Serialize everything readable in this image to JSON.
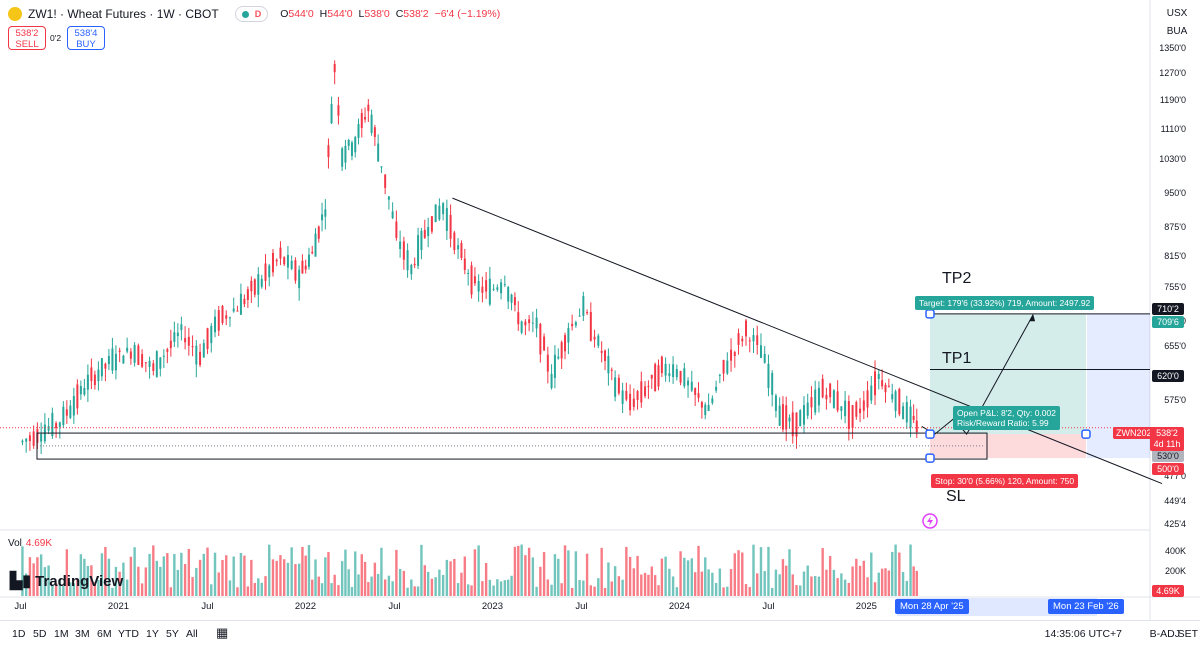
{
  "header": {
    "title": "ZW1! · Wheat Futures · 1W · CBOT",
    "pill_d": "D",
    "ohlc": [
      {
        "lab": "O",
        "val": "544'0"
      },
      {
        "lab": "H",
        "val": "544'0"
      },
      {
        "lab": "L",
        "val": "538'0"
      },
      {
        "lab": "C",
        "val": "538'2"
      },
      {
        "lab": "",
        "val": "−6'4 (−1.19%)"
      }
    ]
  },
  "trade": {
    "sell_price": "538'2",
    "sell_label": "SELL",
    "spread": "0'2",
    "buy_price": "538'4",
    "buy_label": "BUY"
  },
  "top_right": {
    "currency": "USX",
    "buy_sell": "BUA"
  },
  "annotations": {
    "tp2": "TP2",
    "tp1": "TP1",
    "sl": "SL",
    "target_label": "Target: 179'6 (33.92%) 719, Amount: 2497.92",
    "stop_label": "Stop: 30'0 (5.66%) 120, Amount: 750",
    "open_pl": "Open P&L: 8'2, Qty: 0.002",
    "rr": "Risk/Reward Ratio: 5.99"
  },
  "price_axis": {
    "ticks": [
      "1350'0",
      "1270'0",
      "1190'0",
      "1110'0",
      "1030'0",
      "950'0",
      "875'0",
      "815'0",
      "755'0",
      "695'0",
      "655'0",
      "575'0",
      "477'0",
      "449'4",
      "425'4"
    ],
    "current_symbol": "ZWN2025",
    "current_price": "538'2",
    "countdown": "4d 11h",
    "labels": [
      {
        "text": "710'2",
        "style": "dark"
      },
      {
        "text": "709'6",
        "style": "teal"
      },
      {
        "text": "620'0",
        "style": "dark"
      },
      {
        "text": "530'0",
        "style": "gray"
      },
      {
        "text": "500'0",
        "style": "red"
      }
    ]
  },
  "volume": {
    "label": "Vol",
    "value": "4.69K",
    "ticks": [
      "400K",
      "200K"
    ],
    "last": "4.69K"
  },
  "brand": "TradingView",
  "time_axis": {
    "ticks": [
      "Jul",
      "2021",
      "Jul",
      "2022",
      "Jul",
      "2023",
      "Jul",
      "2024",
      "Jul",
      "2025",
      "Jul",
      "Ju"
    ],
    "date_start": "Mon 28 Apr '25",
    "date_end": "Mon 23 Feb '26"
  },
  "bottom": {
    "timeframes": [
      "1D",
      "5D",
      "1M",
      "3M",
      "6M",
      "YTD",
      "1Y",
      "5Y",
      "All"
    ],
    "clock": "14:35:06 UTC+7",
    "badj": "B-ADJ",
    "set": "SET"
  },
  "colors": {
    "up": "#26a69a",
    "down": "#f23645",
    "accent": "#2962ff"
  },
  "chart_data": {
    "type": "candlestick",
    "interval": "1W",
    "x_range": [
      "2020-06",
      "2026-03"
    ],
    "y_range": [
      425,
      1380
    ],
    "series": [
      {
        "name": "Wheat Futures",
        "values": [
          [
            2020.5,
            520
          ],
          [
            2020.7,
            545
          ],
          [
            2020.85,
            600
          ],
          [
            2021.0,
            640
          ],
          [
            2021.1,
            650
          ],
          [
            2021.2,
            620
          ],
          [
            2021.35,
            680
          ],
          [
            2021.45,
            640
          ],
          [
            2021.55,
            700
          ],
          [
            2021.65,
            720
          ],
          [
            2021.78,
            770
          ],
          [
            2021.88,
            815
          ],
          [
            2021.98,
            780
          ],
          [
            2022.05,
            820
          ],
          [
            2022.12,
            920
          ],
          [
            2022.17,
            1290
          ],
          [
            2022.21,
            1050
          ],
          [
            2022.28,
            1080
          ],
          [
            2022.35,
            1170
          ],
          [
            2022.42,
            1020
          ],
          [
            2022.5,
            860
          ],
          [
            2022.58,
            790
          ],
          [
            2022.67,
            880
          ],
          [
            2022.75,
            920
          ],
          [
            2022.83,
            830
          ],
          [
            2022.92,
            760
          ],
          [
            2023.0,
            750
          ],
          [
            2023.08,
            770
          ],
          [
            2023.17,
            690
          ],
          [
            2023.25,
            690
          ],
          [
            2023.33,
            610
          ],
          [
            2023.42,
            680
          ],
          [
            2023.5,
            720
          ],
          [
            2023.58,
            660
          ],
          [
            2023.67,
            600
          ],
          [
            2023.75,
            570
          ],
          [
            2023.83,
            590
          ],
          [
            2023.92,
            620
          ],
          [
            2024.0,
            620
          ],
          [
            2024.08,
            590
          ],
          [
            2024.17,
            560
          ],
          [
            2024.25,
            620
          ],
          [
            2024.37,
            680
          ],
          [
            2024.45,
            650
          ],
          [
            2024.55,
            560
          ],
          [
            2024.62,
            540
          ],
          [
            2024.7,
            560
          ],
          [
            2024.78,
            590
          ],
          [
            2024.86,
            575
          ],
          [
            2024.94,
            550
          ],
          [
            2025.0,
            570
          ],
          [
            2025.08,
            610
          ],
          [
            2025.17,
            580
          ],
          [
            2025.25,
            550
          ],
          [
            2025.3,
            538
          ]
        ]
      }
    ],
    "trendline": [
      [
        2022.75,
        940
      ],
      [
        2026.35,
        480
      ]
    ],
    "support_zone": [
      500,
      530
    ],
    "levels": {
      "entry": 530,
      "target": 709.75,
      "stop": 500,
      "tp1": 620
    }
  }
}
